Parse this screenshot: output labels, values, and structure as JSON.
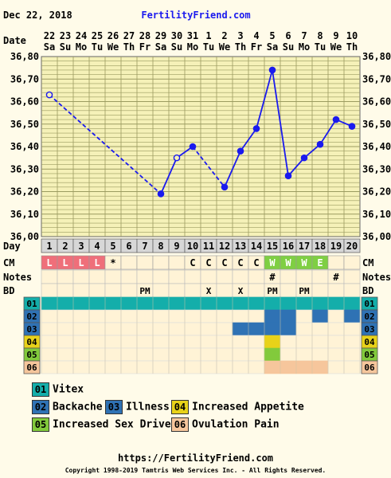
{
  "header": {
    "date": "Dec 22, 2018",
    "site": "FertilityFriend.com"
  },
  "row_labels": {
    "date": "Date",
    "day": "Day",
    "cm": "CM",
    "notes": "Notes",
    "bd": "BD"
  },
  "colors": {
    "page_bg": "#fffbe9",
    "plot_bg": "#f5f1b8",
    "grid": "#9b9b60",
    "line": "#1a1aee",
    "cm_red": "#ef6f7a",
    "cm_green": "#7fcf43",
    "ovulation": "#f6c69c",
    "cm_cell": "#fff3d6"
  },
  "chart_data": {
    "type": "line",
    "y_ticks": [
      "36,80",
      "36,70",
      "36,60",
      "36,50",
      "36,40",
      "36,30",
      "36,20",
      "36,10",
      "36,00"
    ],
    "ylim": [
      36.0,
      36.8
    ],
    "dates": [
      "22",
      "23",
      "24",
      "25",
      "26",
      "27",
      "28",
      "29",
      "30",
      "31",
      "1",
      "2",
      "3",
      "4",
      "5",
      "6",
      "7",
      "8",
      "9",
      "10"
    ],
    "weekdays": [
      "Sa",
      "Su",
      "Mo",
      "Tu",
      "We",
      "Th",
      "Fr",
      "Sa",
      "Su",
      "Mo",
      "Tu",
      "We",
      "Th",
      "Fr",
      "Sa",
      "Su",
      "Mo",
      "Tu",
      "We",
      "Th"
    ],
    "cycle_days": [
      "1",
      "2",
      "3",
      "4",
      "5",
      "6",
      "7",
      "8",
      "9",
      "10",
      "11",
      "12",
      "13",
      "14",
      "15",
      "16",
      "17",
      "18",
      "19",
      "20"
    ],
    "temperatures": [
      36.63,
      null,
      null,
      null,
      null,
      null,
      null,
      36.19,
      36.35,
      36.4,
      null,
      36.22,
      36.38,
      36.48,
      36.74,
      36.27,
      36.35,
      36.41,
      36.52,
      36.49
    ],
    "open_points": [
      1,
      9
    ],
    "cm": [
      "L",
      "L",
      "L",
      "L",
      "*",
      "",
      "",
      "",
      "",
      "C",
      "C",
      "C",
      "C",
      "C",
      "W",
      "W",
      "W",
      "E",
      "",
      ""
    ],
    "notes": [
      "",
      "",
      "",
      "",
      "",
      "",
      "",
      "",
      "",
      "",
      "",
      "",
      "",
      "",
      "#",
      "",
      "",
      "",
      "#",
      ""
    ],
    "bd": [
      "",
      "",
      "",
      "",
      "",
      "",
      "PM",
      "",
      "",
      "",
      "X",
      "",
      "X",
      "",
      "PM",
      "",
      "PM",
      "",
      "",
      ""
    ],
    "symptoms": [
      {
        "code": "01",
        "color": "#14aeaa",
        "days": [
          1,
          2,
          3,
          4,
          5,
          6,
          7,
          8,
          9,
          10,
          11,
          12,
          13,
          14,
          15,
          16,
          17,
          18,
          19,
          20
        ]
      },
      {
        "code": "02",
        "color": "#2f72b4",
        "days": [
          15,
          16,
          18,
          20
        ]
      },
      {
        "code": "03",
        "color": "#2f72b4",
        "days": [
          13,
          14,
          15,
          16
        ]
      },
      {
        "code": "04",
        "color": "#e8d219",
        "days": [
          15
        ]
      },
      {
        "code": "05",
        "color": "#82ca3c",
        "days": [
          15
        ]
      },
      {
        "code": "06",
        "color": "#f6c69c",
        "days": [
          15,
          16,
          17,
          18
        ]
      }
    ]
  },
  "legend": [
    {
      "code": "01",
      "label": "Vitex",
      "color": "#14aeaa"
    },
    {
      "code": "02",
      "label": "Backache",
      "color": "#2f72b4"
    },
    {
      "code": "03",
      "label": "Illness",
      "color": "#2f72b4"
    },
    {
      "code": "04",
      "label": "Increased Appetite",
      "color": "#e8d219"
    },
    {
      "code": "05",
      "label": "Increased Sex Drive",
      "color": "#82ca3c"
    },
    {
      "code": "06",
      "label": "Ovulation Pain",
      "color": "#f6c69c"
    }
  ],
  "footer": {
    "url": "https://FertilityFriend.com",
    "copyright": "Copyright 1998-2019 Tamtris Web Services Inc. - All Rights Reserved."
  }
}
